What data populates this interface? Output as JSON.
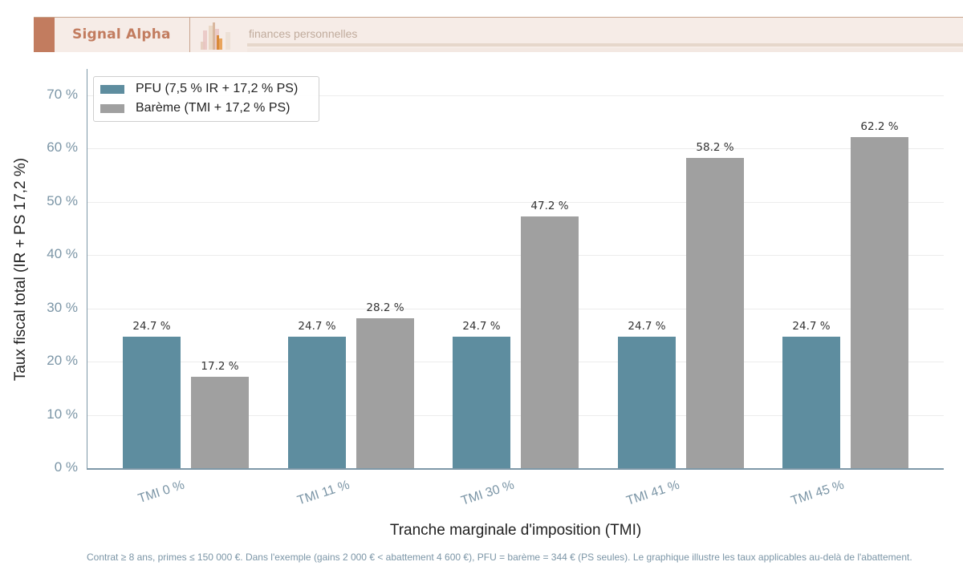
{
  "header": {
    "brand": "Signal Alpha",
    "tagline": "finances personnelles",
    "logo_icon": "bar-chart-logo-icon",
    "colors": {
      "accent": "#c27c5f",
      "background": "#f6ece7"
    }
  },
  "legend": {
    "items": [
      {
        "label": "PFU (7,5 % IR + 17,2 % PS)",
        "color": "#5e8d9f"
      },
      {
        "label": "Barème (TMI + 17,2 % PS)",
        "color": "#a0a0a0"
      }
    ]
  },
  "axes": {
    "ylabel": "Taux fiscal total (IR + PS 17,2 %)",
    "xlabel": "Tranche marginale d'imposition (TMI)",
    "yticks": [
      "0 %",
      "10 %",
      "20 %",
      "30 %",
      "40 %",
      "50 %",
      "60 %",
      "70 %"
    ],
    "xticks": [
      "TMI 0 %",
      "TMI 11 %",
      "TMI 30 %",
      "TMI 41 %",
      "TMI 45 %"
    ]
  },
  "bar_labels": {
    "pfu": [
      "24.7 %",
      "24.7 %",
      "24.7 %",
      "24.7 %",
      "24.7 %"
    ],
    "bareme": [
      "17.2 %",
      "28.2 %",
      "47.2 %",
      "58.2 %",
      "62.2 %"
    ]
  },
  "footnote": "Contrat ≥ 8 ans, primes ≤ 150 000 €. Dans l'exemple (gains 2 000 € < abattement 4 600 €), PFU = barème = 344 € (PS seules). Le graphique illustre les taux applicables au-delà de l'abattement.",
  "chart_data": {
    "type": "bar",
    "title": "",
    "categories": [
      "TMI 0 %",
      "TMI 11 %",
      "TMI 30 %",
      "TMI 41 %",
      "TMI 45 %"
    ],
    "series": [
      {
        "name": "PFU (7,5 % IR + 17,2 % PS)",
        "values": [
          24.7,
          24.7,
          24.7,
          24.7,
          24.7
        ],
        "color": "#5e8d9f"
      },
      {
        "name": "Barème (TMI + 17,2 % PS)",
        "values": [
          17.2,
          28.2,
          47.2,
          58.2,
          62.2
        ],
        "color": "#a0a0a0"
      }
    ],
    "xlabel": "Tranche marginale d'imposition (TMI)",
    "ylabel": "Taux fiscal total (IR + PS 17,2 %)",
    "ylim": [
      0,
      75
    ],
    "yticks": [
      0,
      10,
      20,
      30,
      40,
      50,
      60,
      70
    ],
    "ytick_format": "{v} %",
    "grid": "horizontal",
    "legend_position": "upper left",
    "data_labels": true
  }
}
